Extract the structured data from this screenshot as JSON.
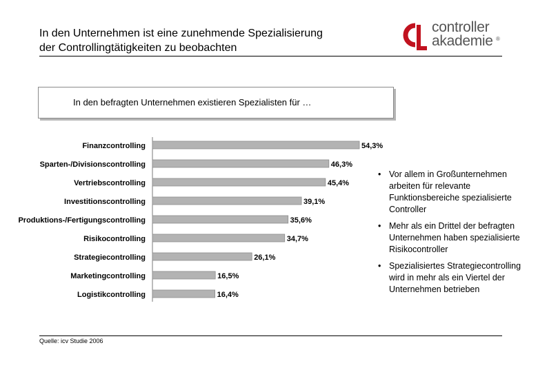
{
  "header": {
    "title_line1": "In den Unternehmen ist eine zunehmende Spezialisierung",
    "title_line2": "der Controllingtätigkeiten zu beobachten"
  },
  "logo": {
    "line1": "controller",
    "line2": "akademie",
    "registered": "®",
    "mark_color": "#c1121f"
  },
  "box": {
    "text": "In den befragten Unternehmen existieren Spezialisten für …"
  },
  "chart_data": {
    "type": "bar",
    "orientation": "horizontal",
    "title": "In den befragten Unternehmen existieren Spezialisten für …",
    "categories": [
      "Finanzcontrolling",
      "Sparten-/Divisionscontrolling",
      "Vertriebscontrolling",
      "Investitionscontrolling",
      "Produktions-/Fertigungscontrolling",
      "Risikocontrolling",
      "Strategiecontrolling",
      "Marketingcontrolling",
      "Logistikcontrolling"
    ],
    "values": [
      54.3,
      46.3,
      45.4,
      39.1,
      35.6,
      34.7,
      26.1,
      16.5,
      16.4
    ],
    "value_labels": [
      "54,3%",
      "46,3%",
      "45,4%",
      "39,1%",
      "35,6%",
      "34,7%",
      "26,1%",
      "16,5%",
      "16,4%"
    ],
    "xlim": [
      0,
      100
    ],
    "bar_color": "#b3b3b3",
    "bar_border": "#8c8c8c",
    "grid": false
  },
  "bullets": [
    "Vor allem in Großunternehmen arbeiten für relevante Funktionsbereiche spezialisierte Controller",
    "Mehr als ein Drittel der befragten Unternehmen haben spezialisierte Risikocontroller",
    "Spezialisiertes Strategiecontrolling wird in mehr als ein Viertel der Unternehmen betrieben"
  ],
  "bullet_symbol": "•",
  "footer": {
    "source": "Quelle: icv Studie 2006"
  }
}
